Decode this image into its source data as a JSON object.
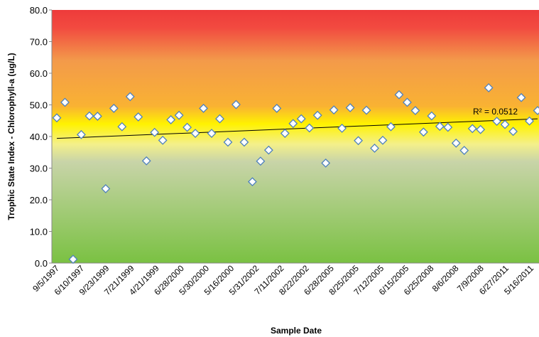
{
  "chart_data": {
    "type": "scatter",
    "xlabel": "Sample Date",
    "ylabel": "Trophic State Index - Chlorophyll-a (ug/L)",
    "ylim": [
      0,
      80
    ],
    "y_ticks": [
      "0.0",
      "10.0",
      "20.0",
      "30.0",
      "40.0",
      "50.0",
      "60.0",
      "70.0",
      "80.0"
    ],
    "x_tick_labels": [
      "9/5/1997",
      "6/10/1997",
      "9/23/1999",
      "7/21/1999",
      "4/21/1999",
      "6/28/2000",
      "5/30/2000",
      "5/16/2000",
      "5/31/2002",
      "7/11/2002",
      "8/22/2002",
      "6/28/2005",
      "8/25/2005",
      "7/12/2005",
      "6/15/2005",
      "6/25/2008",
      "8/6/2008",
      "7/9/2008",
      "6/27/2011",
      "5/16/2011"
    ],
    "values": [
      45.9,
      50.8,
      1.2,
      40.6,
      46.5,
      46.4,
      23.5,
      48.9,
      43.1,
      52.6,
      46.2,
      32.3,
      41.3,
      38.8,
      45.3,
      46.7,
      42.9,
      41.0,
      48.9,
      41.0,
      45.6,
      38.2,
      50.1,
      38.2,
      25.7,
      32.2,
      35.7,
      48.9,
      41.0,
      44.1,
      45.6,
      42.7,
      46.7,
      31.6,
      48.4,
      42.6,
      49.1,
      38.7,
      48.3,
      36.3,
      38.8,
      43.1,
      53.2,
      50.8,
      48.2,
      41.4,
      46.5,
      43.2,
      42.9,
      37.9,
      35.6,
      42.5,
      42.2,
      55.4,
      44.8,
      43.8,
      41.6,
      52.3,
      44.9,
      48.2
    ],
    "trendline": {
      "start": 39.4,
      "end": 45.6
    },
    "annotation": "R² = 0.0512",
    "background_bands": "green (low) to yellow (~45) to orange to red (high)",
    "marker": "white diamond with blue outline",
    "grid": false,
    "legend": "none"
  }
}
